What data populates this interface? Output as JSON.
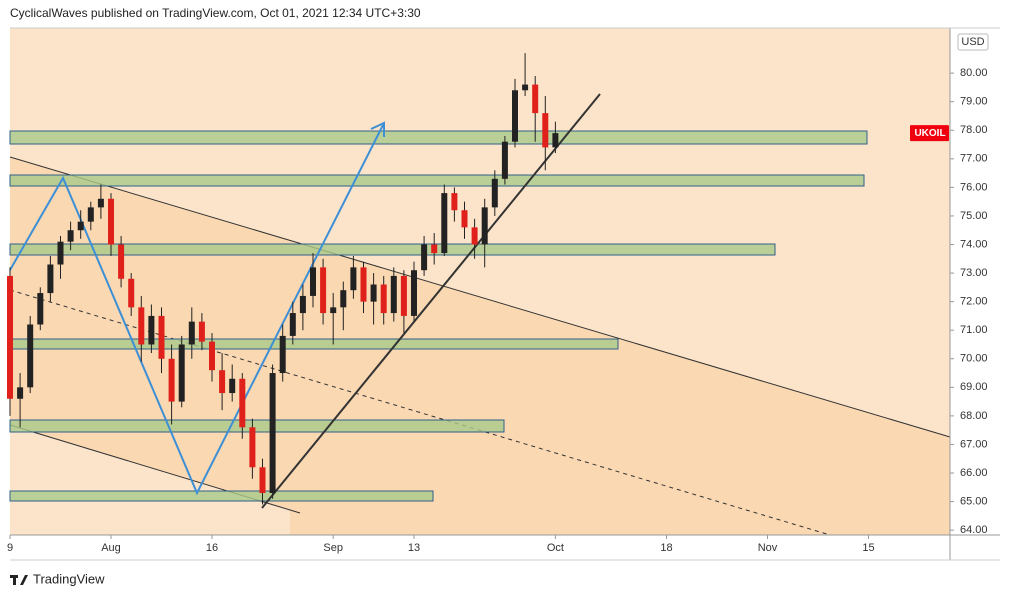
{
  "header": "CyclicalWaves published on TradingView.com, Oct 01, 2021 12:34 UTC+3:30",
  "footer": "TradingView",
  "chart_data": {
    "type": "candlestick",
    "symbol": "UKOIL",
    "currency": "USD",
    "up_color": "#222222",
    "down_color": "#e0201b",
    "xlim": [
      0,
      93.07
    ],
    "xticks": [
      {
        "value": 0,
        "label": "9"
      },
      {
        "value": 10,
        "label": "Aug"
      },
      {
        "value": 20,
        "label": "16"
      },
      {
        "value": 32,
        "label": "Sep"
      },
      {
        "value": 40,
        "label": "13"
      },
      {
        "value": 54,
        "label": "Oct"
      },
      {
        "value": 65,
        "label": "18"
      },
      {
        "value": 75,
        "label": "Nov"
      },
      {
        "value": 85,
        "label": "15"
      }
    ],
    "ylim": [
      63.83,
      81.58
    ],
    "yticks": [
      {
        "value": 64,
        "label": "64.00"
      },
      {
        "value": 65,
        "label": "65.00"
      },
      {
        "value": 66,
        "label": "66.00"
      },
      {
        "value": 67,
        "label": "67.00"
      },
      {
        "value": 68,
        "label": "68.00"
      },
      {
        "value": 69,
        "label": "69.00"
      },
      {
        "value": 70,
        "label": "70.00"
      },
      {
        "value": 71,
        "label": "71.00"
      },
      {
        "value": 72,
        "label": "72.00"
      },
      {
        "value": 73,
        "label": "73.00"
      },
      {
        "value": 74,
        "label": "74.00"
      },
      {
        "value": 75,
        "label": "75.00"
      },
      {
        "value": 76,
        "label": "76.00"
      },
      {
        "value": 77,
        "label": "77.00"
      },
      {
        "value": 78,
        "label": "78.00"
      },
      {
        "value": 79,
        "label": "79.00"
      },
      {
        "value": 80,
        "label": "80.00"
      }
    ],
    "x": [
      0,
      1,
      2,
      3,
      4,
      5,
      6,
      7,
      8,
      9,
      10,
      11,
      12,
      13,
      14,
      15,
      16,
      17,
      18,
      19,
      20,
      21,
      22,
      23,
      24,
      25,
      26,
      27,
      28,
      29,
      30,
      31,
      32,
      33,
      34,
      35,
      36,
      37,
      38,
      39,
      40,
      41,
      42,
      43,
      44,
      45,
      46,
      47,
      48,
      49,
      50,
      51,
      52,
      53,
      54
    ],
    "open": [
      72.9,
      68.6,
      69.0,
      71.2,
      72.3,
      73.3,
      74.1,
      74.5,
      74.8,
      75.3,
      75.6,
      74.0,
      72.8,
      71.8,
      70.5,
      71.5,
      70.0,
      68.5,
      70.5,
      71.3,
      70.6,
      69.6,
      68.8,
      69.3,
      67.6,
      66.2,
      65.3,
      69.5,
      70.8,
      71.6,
      72.2,
      73.2,
      71.6,
      71.8,
      72.4,
      73.2,
      72.0,
      72.6,
      71.6,
      72.9,
      71.5,
      73.1,
      74.0,
      73.7,
      75.8,
      75.2,
      74.6,
      74.0,
      75.3,
      76.3,
      77.6,
      79.4,
      79.6,
      78.6,
      77.4
    ],
    "high": [
      73.2,
      69.5,
      71.5,
      72.5,
      73.6,
      74.3,
      74.8,
      75.2,
      75.5,
      76.1,
      75.8,
      74.3,
      73.0,
      72.2,
      71.9,
      71.8,
      70.5,
      70.8,
      71.8,
      71.6,
      70.9,
      70.2,
      69.8,
      69.5,
      67.9,
      66.5,
      69.8,
      71.2,
      72.0,
      72.6,
      73.7,
      73.5,
      72.3,
      72.7,
      73.6,
      73.4,
      73.0,
      72.9,
      73.2,
      73.1,
      73.4,
      74.3,
      74.4,
      76.1,
      76.0,
      75.5,
      74.9,
      75.6,
      76.6,
      77.8,
      79.8,
      80.7,
      79.9,
      79.2,
      78.3
    ],
    "low": [
      68.0,
      67.6,
      68.8,
      71.0,
      72.0,
      72.8,
      73.8,
      74.2,
      74.5,
      74.9,
      73.6,
      72.5,
      71.5,
      69.9,
      70.2,
      69.5,
      67.7,
      68.3,
      70.0,
      70.3,
      69.2,
      68.2,
      68.5,
      67.2,
      65.8,
      64.9,
      65.1,
      69.2,
      70.5,
      71.0,
      71.8,
      71.2,
      70.5,
      71.0,
      72.1,
      71.6,
      71.2,
      71.2,
      71.3,
      70.9,
      71.3,
      72.9,
      73.3,
      73.6,
      74.8,
      74.2,
      73.5,
      73.2,
      75.0,
      76.1,
      77.4,
      79.2,
      77.6,
      76.6,
      77.2
    ],
    "close": [
      68.6,
      69.0,
      71.2,
      72.3,
      73.3,
      74.1,
      74.5,
      74.8,
      75.3,
      75.6,
      74.0,
      72.8,
      71.8,
      70.5,
      71.5,
      70.0,
      68.5,
      70.5,
      71.3,
      70.6,
      69.6,
      68.8,
      69.3,
      67.6,
      66.2,
      65.3,
      69.5,
      70.8,
      71.6,
      72.2,
      73.2,
      71.6,
      71.8,
      72.4,
      73.2,
      72.0,
      72.6,
      71.6,
      72.9,
      71.5,
      73.1,
      74.0,
      73.7,
      75.8,
      75.2,
      74.6,
      74.0,
      75.3,
      76.3,
      77.6,
      79.4,
      79.6,
      78.6,
      77.4,
      77.9
    ]
  }
}
